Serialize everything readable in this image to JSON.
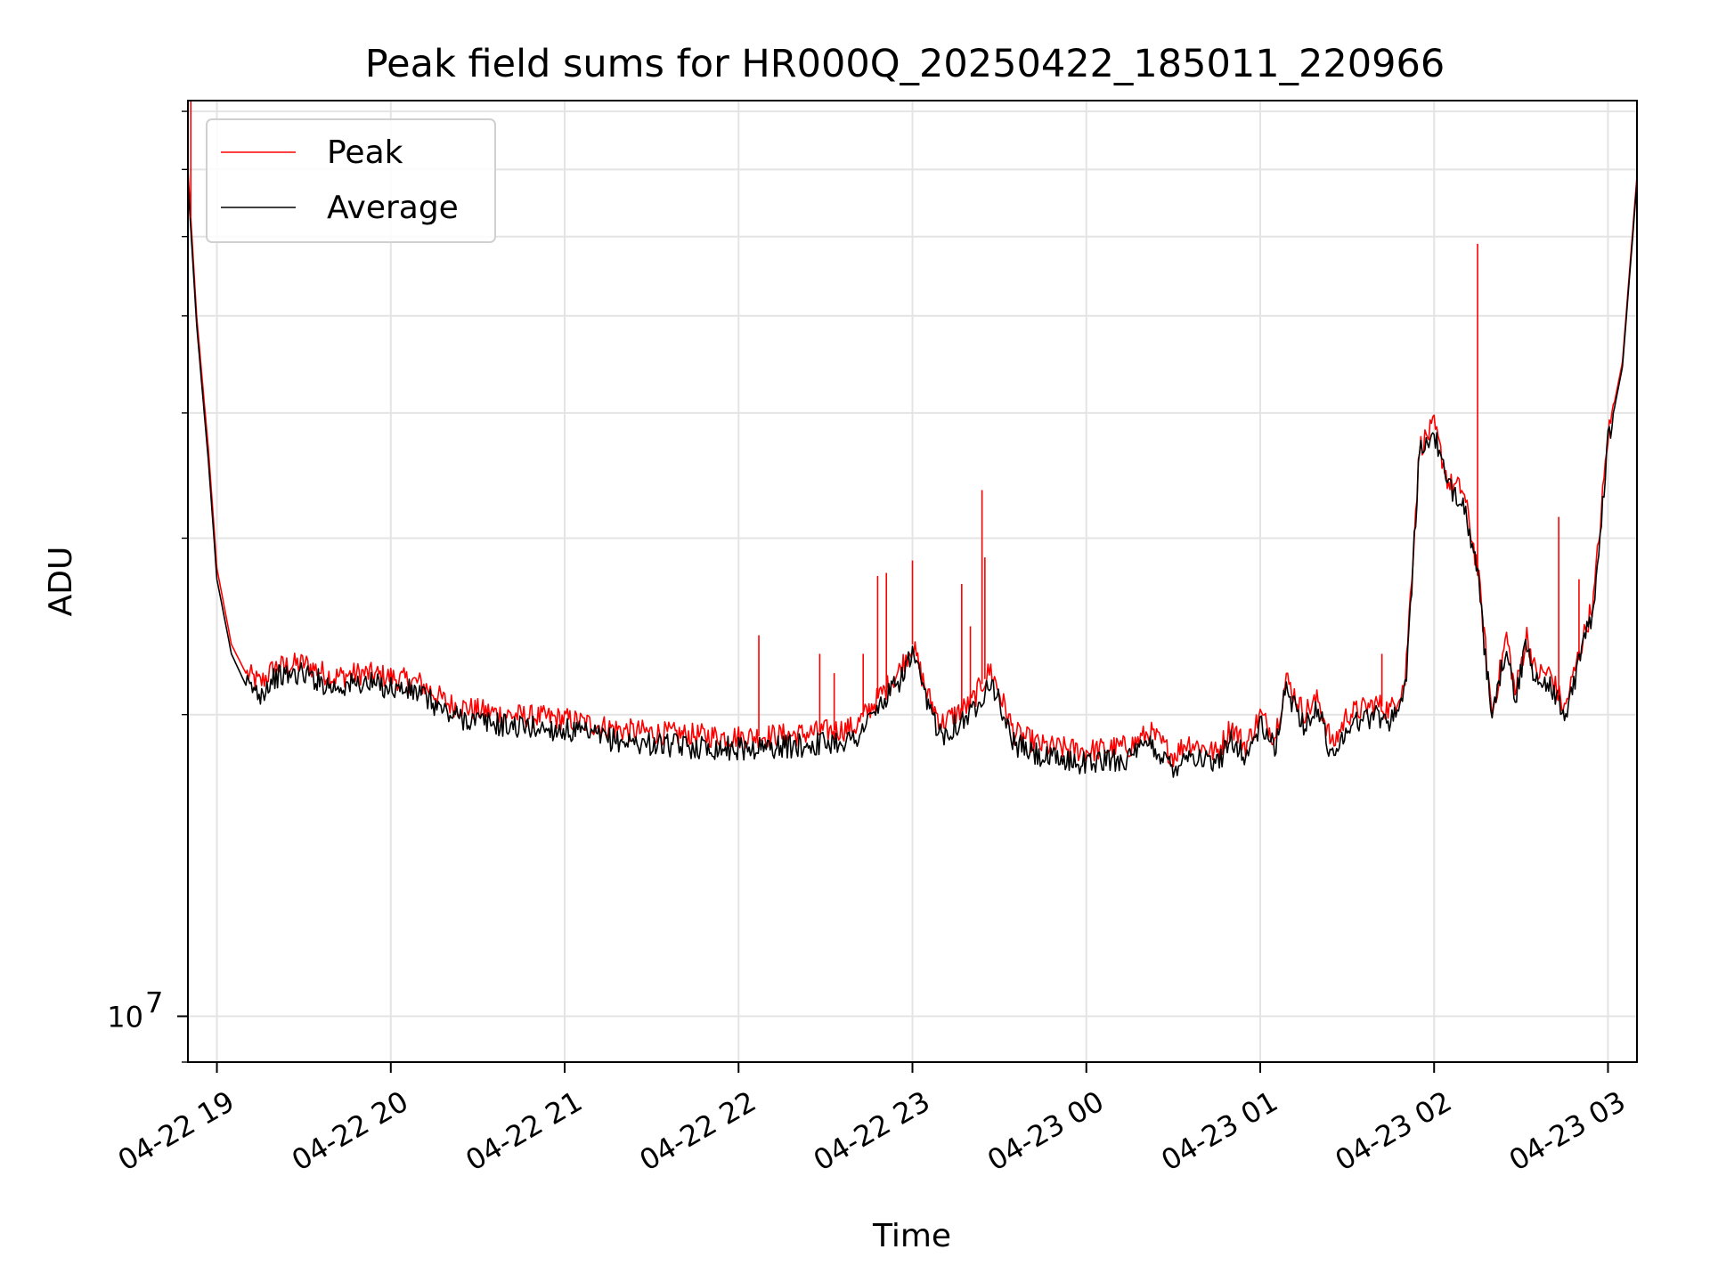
{
  "chart_data": {
    "type": "line",
    "title": "Peak field sums for HR000Q_20250422_185011_220966",
    "xlabel": "Time",
    "ylabel": "ADU",
    "yscale": "log",
    "xlim": [
      "04-22 18:50",
      "04-23 03:10"
    ],
    "ylim": [
      9000000,
      82000000
    ],
    "grid": true,
    "legend_position": "top-left",
    "x_ticks": [
      "04-22 19",
      "04-22 20",
      "04-22 21",
      "04-22 22",
      "04-22 23",
      "04-23 00",
      "04-23 01",
      "04-23 02",
      "04-23 03"
    ],
    "y_major_tick": {
      "value": 10000000,
      "base": "10",
      "exp": "7"
    },
    "series": [
      {
        "name": "Peak",
        "color": "#ff0000",
        "x": [
          "04-22 18:50",
          "04-22 18:53",
          "04-22 18:57",
          "04-22 19:00",
          "04-22 19:05",
          "04-22 19:10",
          "04-22 19:15",
          "04-22 19:20",
          "04-22 19:30",
          "04-22 19:40",
          "04-22 19:50",
          "04-22 20:00",
          "04-22 20:10",
          "04-22 20:20",
          "04-22 20:30",
          "04-22 20:40",
          "04-22 21:00",
          "04-22 21:20",
          "04-22 21:40",
          "04-22 22:00",
          "04-22 22:20",
          "04-22 22:40",
          "04-22 22:55",
          "04-22 23:00",
          "04-22 23:05",
          "04-22 23:10",
          "04-22 23:20",
          "04-22 23:27",
          "04-22 23:35",
          "04-22 23:45",
          "04-23 00:00",
          "04-23 00:15",
          "04-23 00:22",
          "04-23 00:30",
          "04-23 00:35",
          "04-23 00:45",
          "04-23 00:50",
          "04-23 00:55",
          "04-23 01:00",
          "04-23 01:05",
          "04-23 01:09",
          "04-23 01:15",
          "04-23 01:20",
          "04-23 01:25",
          "04-23 01:30",
          "04-23 01:40",
          "04-23 01:45",
          "04-23 01:50",
          "04-23 01:55",
          "04-23 02:00",
          "04-23 02:05",
          "04-23 02:10",
          "04-23 02:15",
          "04-23 02:20",
          "04-23 02:25",
          "04-23 02:28",
          "04-23 02:32",
          "04-23 02:35",
          "04-23 02:40",
          "04-23 02:45",
          "04-23 02:50",
          "04-23 02:55",
          "04-23 03:00",
          "04-23 03:05",
          "04-23 03:10"
        ],
        "values": [
          70000000,
          50000000,
          37000000,
          28000000,
          23500000,
          22000000,
          21500000,
          22300000,
          22500000,
          21800000,
          22000000,
          21800000,
          21500000,
          20500000,
          20200000,
          20000000,
          19800000,
          19300000,
          19100000,
          19000000,
          19100000,
          19400000,
          22000000,
          23500000,
          21000000,
          19600000,
          20500000,
          22200000,
          19200000,
          18600000,
          18400000,
          18600000,
          19200000,
          18200000,
          18800000,
          18300000,
          19500000,
          18600000,
          20000000,
          19000000,
          21700000,
          20100000,
          20700000,
          18600000,
          20000000,
          20500000,
          20200000,
          21600000,
          37000000,
          38800000,
          34000000,
          33500000,
          28000000,
          20000000,
          24000000,
          21000000,
          24000000,
          22000000,
          22000000,
          20200000,
          23000000,
          26000000,
          38000000,
          45000000,
          69000000
        ]
      },
      {
        "name": "Average",
        "color": "#000000",
        "x": [
          "04-22 18:50",
          "04-22 18:53",
          "04-22 18:57",
          "04-22 19:00",
          "04-22 19:05",
          "04-22 19:10",
          "04-22 19:15",
          "04-22 19:20",
          "04-22 19:30",
          "04-22 19:40",
          "04-22 19:50",
          "04-22 20:00",
          "04-22 20:10",
          "04-22 20:20",
          "04-22 20:30",
          "04-22 20:40",
          "04-22 21:00",
          "04-22 21:20",
          "04-22 21:40",
          "04-22 22:00",
          "04-22 22:20",
          "04-22 22:40",
          "04-22 22:55",
          "04-22 23:00",
          "04-22 23:05",
          "04-22 23:10",
          "04-22 23:20",
          "04-22 23:27",
          "04-22 23:35",
          "04-22 23:45",
          "04-23 00:00",
          "04-23 00:15",
          "04-23 00:22",
          "04-23 00:30",
          "04-23 00:35",
          "04-23 00:45",
          "04-23 00:50",
          "04-23 00:55",
          "04-23 01:00",
          "04-23 01:05",
          "04-23 01:09",
          "04-23 01:15",
          "04-23 01:20",
          "04-23 01:25",
          "04-23 01:30",
          "04-23 01:40",
          "04-23 01:45",
          "04-23 01:50",
          "04-23 01:55",
          "04-23 02:00",
          "04-23 02:05",
          "04-23 02:10",
          "04-23 02:15",
          "04-23 02:20",
          "04-23 02:25",
          "04-23 02:28",
          "04-23 02:32",
          "04-23 02:35",
          "04-23 02:40",
          "04-23 02:45",
          "04-23 02:50",
          "04-23 02:55",
          "04-23 03:00",
          "04-23 03:05",
          "04-23 03:10"
        ],
        "values": [
          68000000,
          49000000,
          36000000,
          27300000,
          23000000,
          21400000,
          21000000,
          21800000,
          22000000,
          21300000,
          21500000,
          21300000,
          21000000,
          20000000,
          19700000,
          19500000,
          19300000,
          18800000,
          18600000,
          18500000,
          18600000,
          18900000,
          21500000,
          23000000,
          20500000,
          19100000,
          20000000,
          21700000,
          18700000,
          18100000,
          17900000,
          18100000,
          18700000,
          17700000,
          18300000,
          17800000,
          19000000,
          18100000,
          19500000,
          18500000,
          21200000,
          19600000,
          20200000,
          18100000,
          19500000,
          20000000,
          19700000,
          21100000,
          36500000,
          38200000,
          33500000,
          33000000,
          27500000,
          19600000,
          23600000,
          20600000,
          23600000,
          21600000,
          21600000,
          19800000,
          22600000,
          25600000,
          37500000,
          44500000,
          68000000
        ]
      }
    ],
    "peak_spikes": [
      {
        "x": "04-22 18:51",
        "value": 82000000
      },
      {
        "x": "04-22 22:07",
        "value": 24000000
      },
      {
        "x": "04-22 22:28",
        "value": 23000000
      },
      {
        "x": "04-22 22:33",
        "value": 22000000
      },
      {
        "x": "04-22 22:43",
        "value": 23000000
      },
      {
        "x": "04-22 22:48",
        "value": 27500000
      },
      {
        "x": "04-22 22:51",
        "value": 27700000
      },
      {
        "x": "04-22 23:00",
        "value": 28500000
      },
      {
        "x": "04-22 23:17",
        "value": 27000000
      },
      {
        "x": "04-22 23:20",
        "value": 24500000
      },
      {
        "x": "04-22 23:24",
        "value": 33500000
      },
      {
        "x": "04-22 23:25",
        "value": 28700000
      },
      {
        "x": "04-23 01:42",
        "value": 23000000
      },
      {
        "x": "04-23 02:15",
        "value": 59000000
      },
      {
        "x": "04-23 02:43",
        "value": 31500000
      },
      {
        "x": "04-23 02:50",
        "value": 27300000
      }
    ]
  }
}
